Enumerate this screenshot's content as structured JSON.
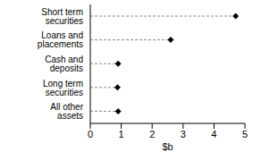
{
  "chart_data": {
    "type": "dot",
    "orientation": "horizontal",
    "categories": [
      "Short term securities",
      "Loans and placements",
      "Cash and deposits",
      "Long term securities",
      "All other assets"
    ],
    "values": [
      4.7,
      2.6,
      0.9,
      0.88,
      0.9
    ],
    "xlabel": "$b",
    "xlim": [
      0,
      5
    ],
    "xticks": [
      0,
      1,
      2,
      3,
      4,
      5
    ],
    "color": "#000000",
    "marker": "diamond",
    "line_style": "dashed",
    "grid": false
  }
}
